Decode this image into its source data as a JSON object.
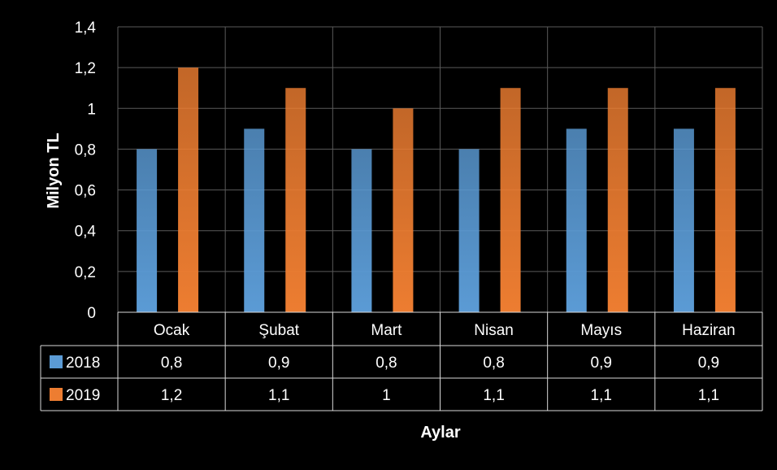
{
  "chart_data": {
    "type": "bar",
    "categories": [
      "Ocak",
      "Şubat",
      "Mart",
      "Nisan",
      "Mayıs",
      "Haziran"
    ],
    "series": [
      {
        "name": "2018",
        "values": [
          0.8,
          0.9,
          0.8,
          0.8,
          0.9,
          0.9
        ],
        "color": "#5b9bd5"
      },
      {
        "name": "2019",
        "values": [
          1.2,
          1.1,
          1.0,
          1.1,
          1.1,
          1.1
        ],
        "color": "#ed7d31"
      }
    ],
    "table_values": [
      [
        "0,8",
        "0,9",
        "0,8",
        "0,8",
        "0,9",
        "0,9"
      ],
      [
        "1,2",
        "1,1",
        "1",
        "1,1",
        "1,1",
        "1,1"
      ]
    ],
    "y_ticks": [
      "0",
      "0,2",
      "0,4",
      "0,6",
      "0,8",
      "1",
      "1,2",
      "1,4"
    ],
    "ylim": [
      0,
      1.4
    ],
    "xlabel": "Aylar",
    "ylabel": "Milyon TL",
    "grid": true,
    "legend": "data-table",
    "background": "#000000"
  }
}
